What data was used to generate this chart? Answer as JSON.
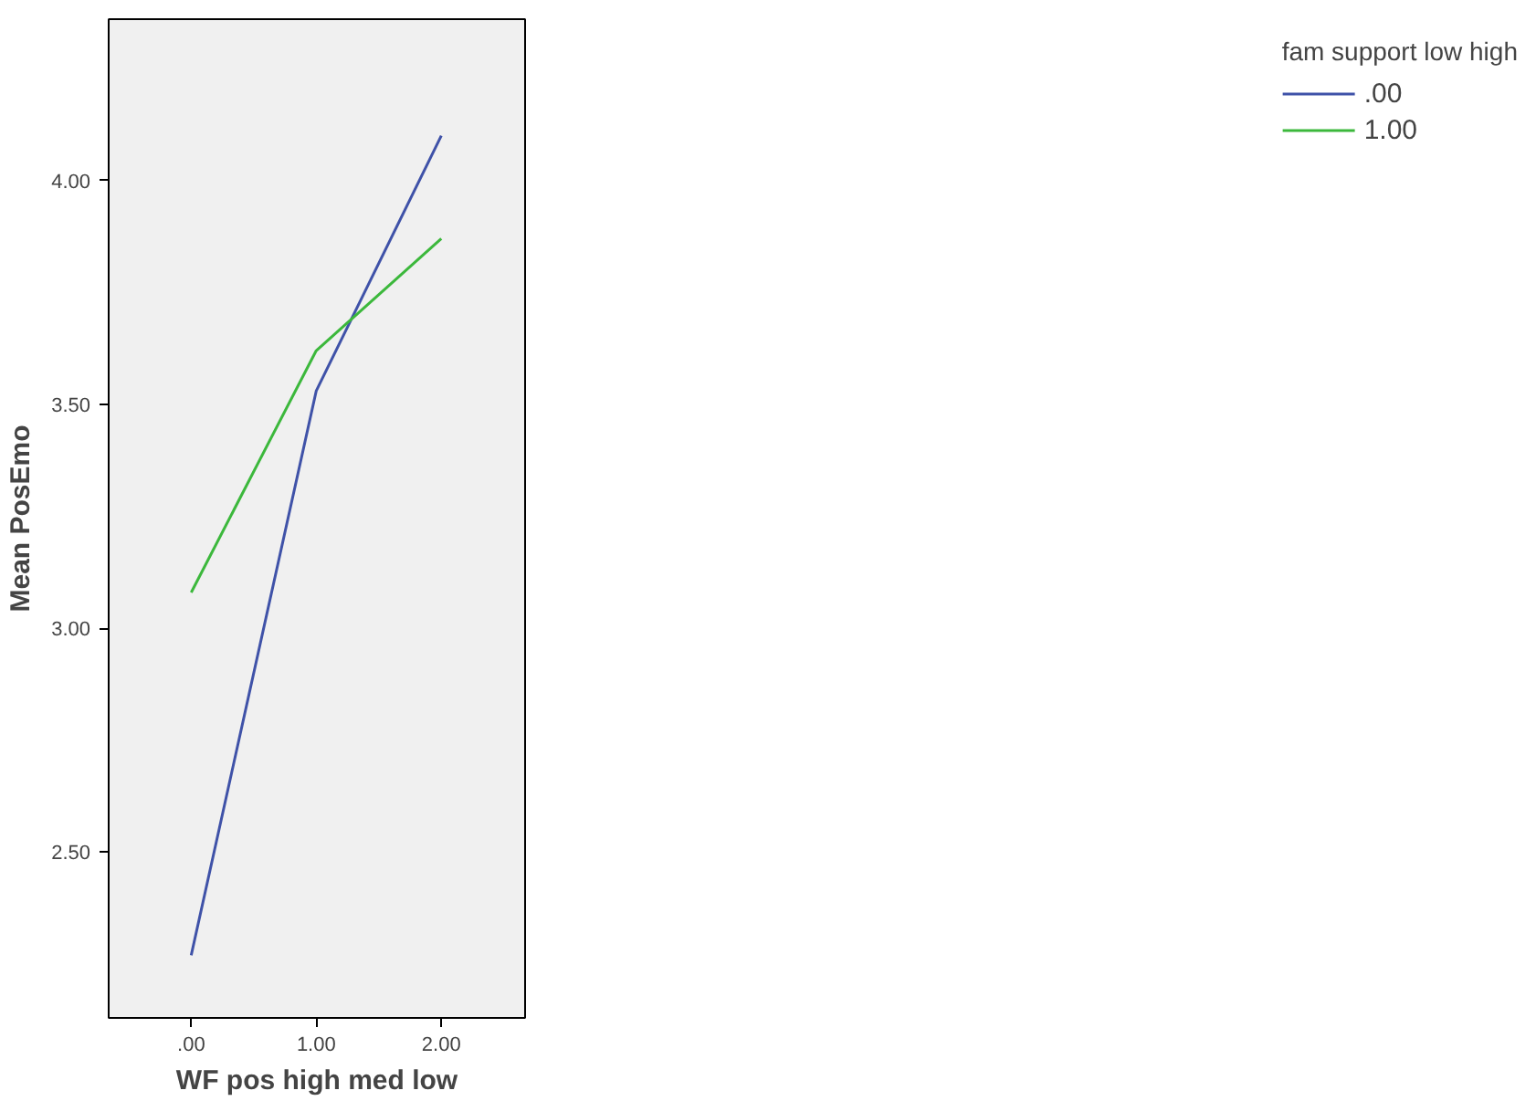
{
  "chart_data": {
    "type": "line",
    "xlabel": "WF pos high med low",
    "ylabel": "Mean PosEmo",
    "legend_title": "fam support low high",
    "x": [
      0,
      1,
      2
    ],
    "series": [
      {
        "name": ".00",
        "color": "#3f52a8",
        "values": [
          2.27,
          3.53,
          4.1
        ]
      },
      {
        "name": "1.00",
        "color": "#3cb83c",
        "values": [
          3.08,
          3.62,
          3.87
        ]
      }
    ],
    "xlim": [
      -0.66,
      2.67
    ],
    "ylim": [
      2.13,
      4.36
    ],
    "xticks": [
      {
        "value": 0,
        "label": ".00"
      },
      {
        "value": 1,
        "label": "1.00"
      },
      {
        "value": 2,
        "label": "2.00"
      }
    ],
    "yticks": [
      {
        "value": 2.5,
        "label": "2.50"
      },
      {
        "value": 3,
        "label": "3.00"
      },
      {
        "value": 3.5,
        "label": "3.50"
      },
      {
        "value": 4,
        "label": "4.00"
      }
    ],
    "grid": false,
    "legend": "top right",
    "marker": "none",
    "line_style": "solid"
  }
}
